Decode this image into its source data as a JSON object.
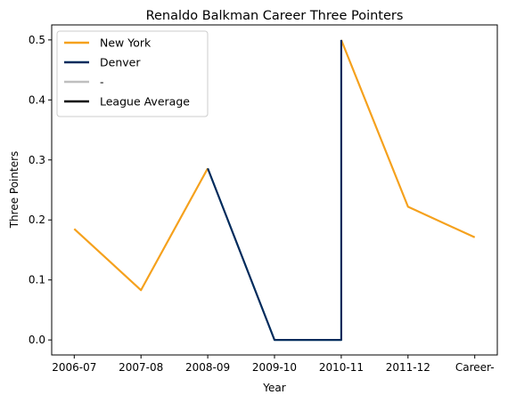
{
  "chart_data": {
    "type": "line",
    "title": "Renaldo Balkman Career Three Pointers",
    "xlabel": "Year",
    "ylabel": "Three Pointers",
    "categories": [
      "2006-07",
      "2007-08",
      "2008-09",
      "2009-10",
      "2010-11",
      "2011-12",
      "Career-"
    ],
    "ylim": [
      -0.025,
      0.525
    ],
    "yticks": [
      0.0,
      0.1,
      0.2,
      0.3,
      0.4,
      0.5
    ],
    "ytick_labels": [
      "0.0",
      "0.1",
      "0.2",
      "0.3",
      "0.4",
      "0.5"
    ],
    "grid": false,
    "legend_position": "upper-left",
    "series": [
      {
        "name": "New York",
        "color": "#f5a11d",
        "points": [
          {
            "x": "2006-07",
            "y": 0.185
          },
          {
            "x": "2007-08",
            "y": 0.083
          },
          {
            "x": "2008-09",
            "y": 0.286
          }
        ]
      },
      {
        "name": "New York",
        "color": "#f5a11d",
        "legend": false,
        "points": [
          {
            "x": "2010-11",
            "y": 0.5
          },
          {
            "x": "2011-12",
            "y": 0.222
          },
          {
            "x": "Career-",
            "y": 0.171
          }
        ]
      },
      {
        "name": "Denver",
        "color": "#002b5c",
        "points": [
          {
            "x": "2008-09",
            "y": 0.286
          },
          {
            "x": "2009-10",
            "y": 0.0
          },
          {
            "x": "2010-11",
            "y": 0.0
          },
          {
            "x": "2010-11",
            "y": 0.5
          }
        ]
      },
      {
        "name": "-",
        "color": "#bfbfbf",
        "points": []
      },
      {
        "name": "League Average",
        "color": "#000000",
        "points": []
      }
    ]
  }
}
